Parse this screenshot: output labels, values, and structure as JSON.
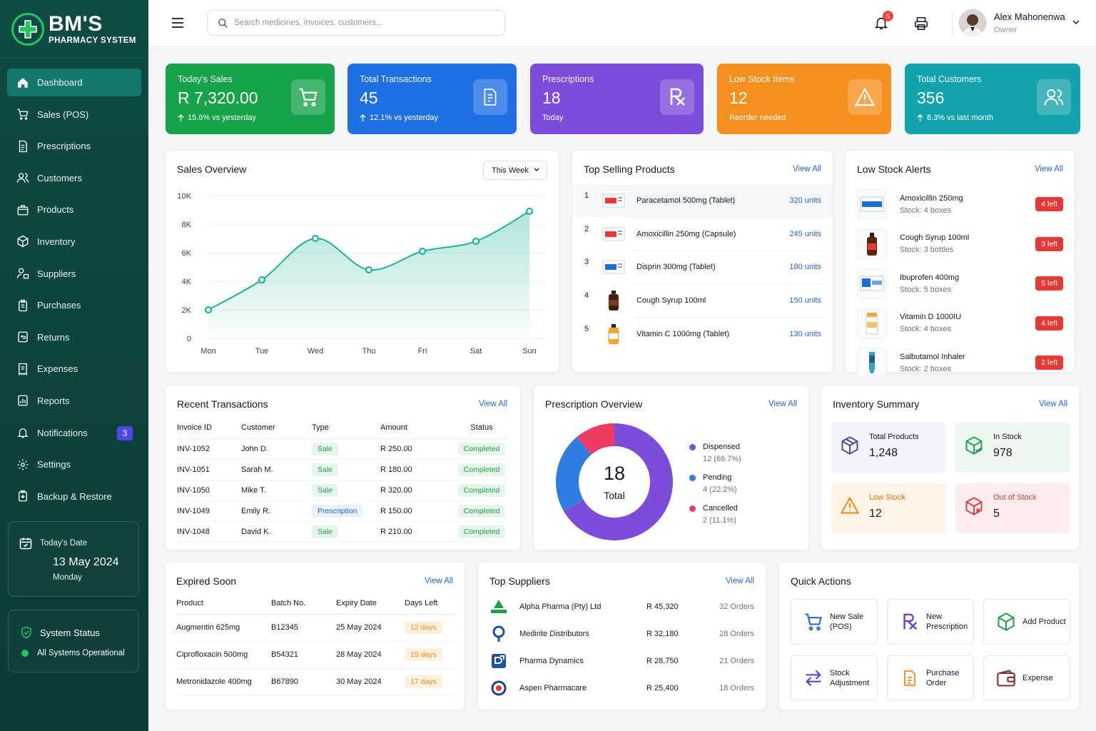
{
  "brand": {
    "name": "BM'S",
    "subtitle": "PHARMACY SYSTEM"
  },
  "nav": [
    {
      "label": "Dashboard",
      "icon": "home-icon",
      "active": true
    },
    {
      "label": "Sales (POS)",
      "icon": "cart-icon"
    },
    {
      "label": "Prescriptions",
      "icon": "document-icon"
    },
    {
      "label": "Customers",
      "icon": "users-icon"
    },
    {
      "label": "Products",
      "icon": "box-icon"
    },
    {
      "label": "Inventory",
      "icon": "cube-icon"
    },
    {
      "label": "Suppliers",
      "icon": "supplier-icon"
    },
    {
      "label": "Purchases",
      "icon": "clipboard-icon"
    },
    {
      "label": "Returns",
      "icon": "return-icon"
    },
    {
      "label": "Expenses",
      "icon": "receipt-icon"
    },
    {
      "label": "Reports",
      "icon": "report-icon"
    },
    {
      "label": "Notifications",
      "icon": "bell-icon",
      "badge": "3"
    },
    {
      "label": "Settings",
      "icon": "gear-icon"
    },
    {
      "label": "Backup & Restore",
      "icon": "backup-icon"
    }
  ],
  "date_card": {
    "label": "Today's Date",
    "date": "13 May 2024",
    "weekday": "Monday"
  },
  "status_card": {
    "title": "System Status",
    "status": "All Systems Operational"
  },
  "topbar": {
    "search_placeholder": "Search medicines, invoices, customers...",
    "notifications_count": "5",
    "user_name": "Alex Mahonenwa",
    "user_role": "Owner"
  },
  "stats": [
    {
      "label": "Today's Sales",
      "value": "R 7,320.00",
      "sub": "15.6% vs yesterday",
      "arrow": true,
      "color": "#17a34a",
      "icon": "cart-icon"
    },
    {
      "label": "Total Transactions",
      "value": "45",
      "sub": "12.1% vs yesterday",
      "arrow": true,
      "color": "#1f6fe5",
      "icon": "invoice-icon"
    },
    {
      "label": "Prescriptions",
      "value": "18",
      "sub": "Today",
      "arrow": false,
      "color": "#7c4ddb",
      "icon": "rx-icon"
    },
    {
      "label": "Low Stock Items",
      "value": "12",
      "sub": "Reorder needed",
      "arrow": false,
      "color": "#f5901e",
      "icon": "warning-icon"
    },
    {
      "label": "Total Customers",
      "value": "356",
      "sub": "8.3% vs last month",
      "arrow": true,
      "color": "#13a3ad",
      "icon": "users-icon"
    }
  ],
  "sales_overview": {
    "title": "Sales Overview",
    "period": "This Week",
    "chart_data": {
      "type": "line",
      "categories": [
        "Mon",
        "Tue",
        "Wed",
        "Thu",
        "Fri",
        "Sat",
        "Sun"
      ],
      "values": [
        2000,
        4100,
        7000,
        4800,
        6100,
        6800,
        8900
      ],
      "y_ticks": [
        "0",
        "2K",
        "4K",
        "6K",
        "8K",
        "10K"
      ],
      "ylim": [
        0,
        10000
      ],
      "grid": true,
      "color": "#1bb39a"
    }
  },
  "top_selling": {
    "title": "Top Selling Products",
    "view_all": "View All",
    "items": [
      {
        "rank": "1",
        "name": "Paracetamol 500mg (Tablet)",
        "units": "320 units"
      },
      {
        "rank": "2",
        "name": "Amoxicillin 250mg (Capsule)",
        "units": "245 units"
      },
      {
        "rank": "3",
        "name": "Disprin 300mg (Tablet)",
        "units": "180 units"
      },
      {
        "rank": "4",
        "name": "Cough Syrup 100ml",
        "units": "150 units"
      },
      {
        "rank": "5",
        "name": "Vitamin C 1000mg (Tablet)",
        "units": "130 units"
      }
    ]
  },
  "low_stock": {
    "title": "Low Stock Alerts",
    "view_all": "View All",
    "items": [
      {
        "name": "Amoxicillin 250mg",
        "stock": "Stock: 4 boxes",
        "badge": "4 left"
      },
      {
        "name": "Cough Syrup 100ml",
        "stock": "Stock: 3 bottles",
        "badge": "3 left"
      },
      {
        "name": "Ibuprofen 400mg",
        "stock": "Stock: 5 boxes",
        "badge": "5 left"
      },
      {
        "name": "Vitamin D 1000IU",
        "stock": "Stock: 4 boxes",
        "badge": "4 left"
      },
      {
        "name": "Salbutamol Inhaler",
        "stock": "Stock: 2 boxes",
        "badge": "2 left"
      }
    ]
  },
  "recent_transactions": {
    "title": "Recent Transactions",
    "view_all": "View All",
    "columns": [
      "Invoice ID",
      "Customer",
      "Type",
      "Amount",
      "Status"
    ],
    "rows": [
      {
        "id": "INV-1052",
        "customer": "John D.",
        "type": "Sale",
        "amount": "R 250.00",
        "status": "Completed"
      },
      {
        "id": "INV-1051",
        "customer": "Sarah M.",
        "type": "Sale",
        "amount": "R 180.00",
        "status": "Completed"
      },
      {
        "id": "INV-1050",
        "customer": "Mike T.",
        "type": "Sale",
        "amount": "R 320.00",
        "status": "Completed"
      },
      {
        "id": "INV-1049",
        "customer": "Emily R.",
        "type": "Prescription",
        "amount": "R 150.00",
        "status": "Completed"
      },
      {
        "id": "INV-1048",
        "customer": "David K.",
        "type": "Sale",
        "amount": "R 210.00",
        "status": "Completed"
      }
    ]
  },
  "prescription_overview": {
    "title": "Prescription Overview",
    "view_all": "View All",
    "total_value": "18",
    "total_label": "Total",
    "chart_data": {
      "type": "pie",
      "slices": [
        {
          "label": "Dispensed",
          "value": 12,
          "text": "12 (66.7%)",
          "color": "#7c4ddb"
        },
        {
          "label": "Pending",
          "value": 4,
          "text": "4 (22.2%)",
          "color": "#2f7de1"
        },
        {
          "label": "Cancelled",
          "value": 2,
          "text": "2 (11.1%)",
          "color": "#ee3b62"
        }
      ]
    }
  },
  "inventory_summary": {
    "title": "Inventory Summary",
    "view_all": "View All",
    "tiles": [
      {
        "label": "Total Products",
        "value": "1,248"
      },
      {
        "label": "In Stock",
        "value": "978"
      },
      {
        "label": "Low Stock",
        "value": "12"
      },
      {
        "label": "Out of Stock",
        "value": "5"
      }
    ]
  },
  "expired_soon": {
    "title": "Expired Soon",
    "view_all": "View All",
    "columns": [
      "Product",
      "Batch No.",
      "Expiry Date",
      "Days Left"
    ],
    "rows": [
      {
        "product": "Augmentin 625mg",
        "batch": "B12345",
        "expiry": "25 May 2024",
        "days": "12 days"
      },
      {
        "product": "Ciprofloxacin 500mg",
        "batch": "B54321",
        "expiry": "28 May 2024",
        "days": "15 days"
      },
      {
        "product": "Metronidazole 400mg",
        "batch": "B67890",
        "expiry": "30 May 2024",
        "days": "17 days"
      }
    ]
  },
  "top_suppliers": {
    "title": "Top Suppliers",
    "view_all": "View All",
    "rows": [
      {
        "name": "Alpha Pharma (Pty) Ltd",
        "amount": "R 45,320",
        "orders": "32 Orders"
      },
      {
        "name": "Medirite Distributors",
        "amount": "R 32,180",
        "orders": "28 Orders"
      },
      {
        "name": "Pharma Dynamics",
        "amount": "R 28,750",
        "orders": "21 Orders"
      },
      {
        "name": "Aspen Pharmacare",
        "amount": "R 25,400",
        "orders": "18 Orders"
      }
    ]
  },
  "quick_actions": {
    "title": "Quick Actions",
    "items": [
      {
        "line1": "New Sale",
        "line2": "(POS)"
      },
      {
        "line1": "New",
        "line2": "Prescription"
      },
      {
        "line1": "Add Product",
        "line2": ""
      },
      {
        "line1": "Stock",
        "line2": "Adjustment"
      },
      {
        "line1": "Purchase",
        "line2": "Order"
      },
      {
        "line1": "Expense",
        "line2": ""
      }
    ]
  }
}
